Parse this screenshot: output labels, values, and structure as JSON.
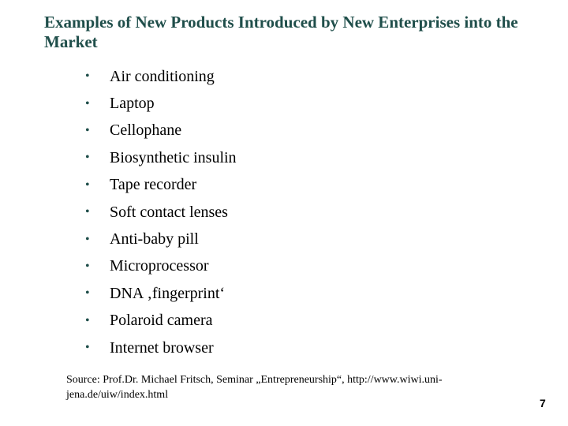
{
  "slide": {
    "title": "Examples of New Products Introduced by New Enterprises into the Market",
    "bullet_symbol": "•",
    "items": [
      "Air conditioning",
      "Laptop",
      "Cellophane",
      "Biosynthetic insulin",
      "Tape recorder",
      "Soft contact lenses",
      "Anti-baby pill",
      "Microprocessor",
      "DNA ‚fingerprint‘",
      "Polaroid camera",
      "Internet browser"
    ],
    "source": "Source: Prof.Dr. Michael Fritsch, Seminar „Entrepreneurship“, http://www.wiwi.uni-jena.de/uiw/index.html",
    "page_number": "7"
  },
  "colors": {
    "title": "#1f4e4a",
    "text": "#000000",
    "background": "#ffffff"
  }
}
